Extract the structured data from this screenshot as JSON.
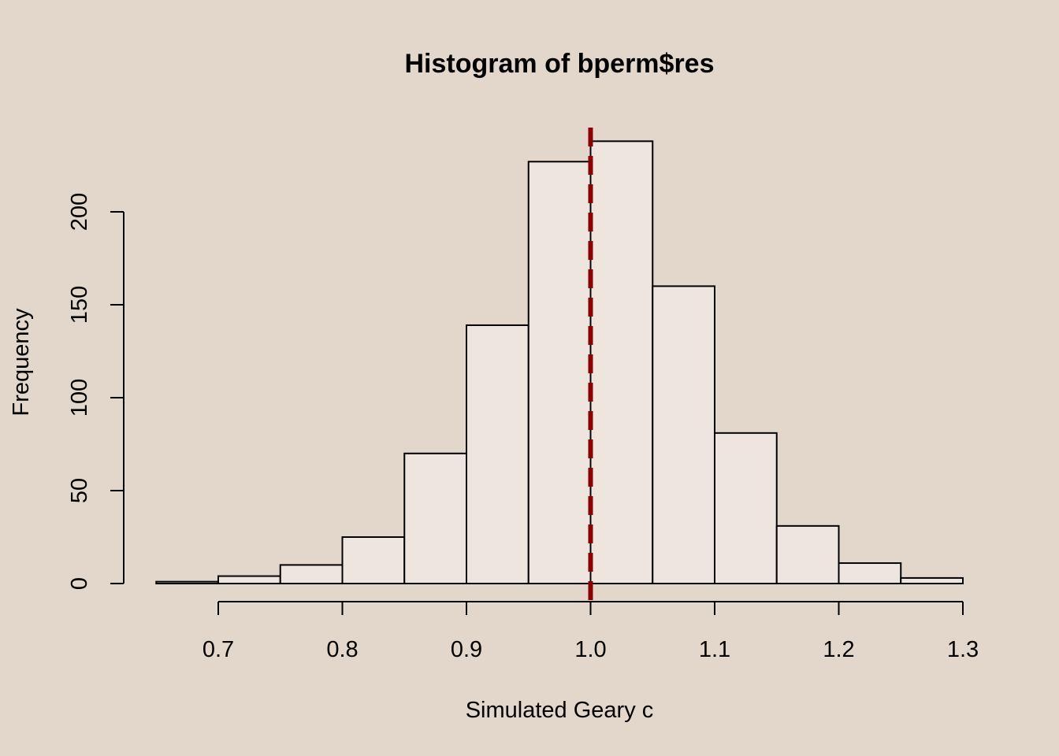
{
  "chart_data": {
    "type": "bar",
    "title": "Histogram of bperm$res",
    "xlabel": "Simulated Geary c",
    "ylabel": "Frequency",
    "bin_edges": [
      0.65,
      0.7,
      0.75,
      0.8,
      0.85,
      0.9,
      0.95,
      1.0,
      1.05,
      1.1,
      1.15,
      1.2,
      1.25,
      1.3
    ],
    "values": [
      1,
      4,
      10,
      25,
      70,
      139,
      227,
      238,
      160,
      81,
      31,
      11,
      3
    ],
    "xticks": [
      0.7,
      0.8,
      0.9,
      1.0,
      1.1,
      1.2,
      1.3
    ],
    "xtick_labels": [
      "0.7",
      "0.8",
      "0.9",
      "1.0",
      "1.1",
      "1.2",
      "1.3"
    ],
    "yticks": [
      0,
      50,
      100,
      150,
      200
    ],
    "ytick_labels": [
      "0",
      "50",
      "100",
      "150",
      "200"
    ],
    "xlim": [
      0.7,
      1.3
    ],
    "ylim": [
      0,
      200
    ],
    "reference_line": {
      "x": 1.0,
      "style": "dashed"
    },
    "grid": false,
    "colors": {
      "background": "#e3d6ca",
      "bar_fill": "#efe5df",
      "bar_stroke": "#000000",
      "reference_line": "#8b0000"
    }
  }
}
